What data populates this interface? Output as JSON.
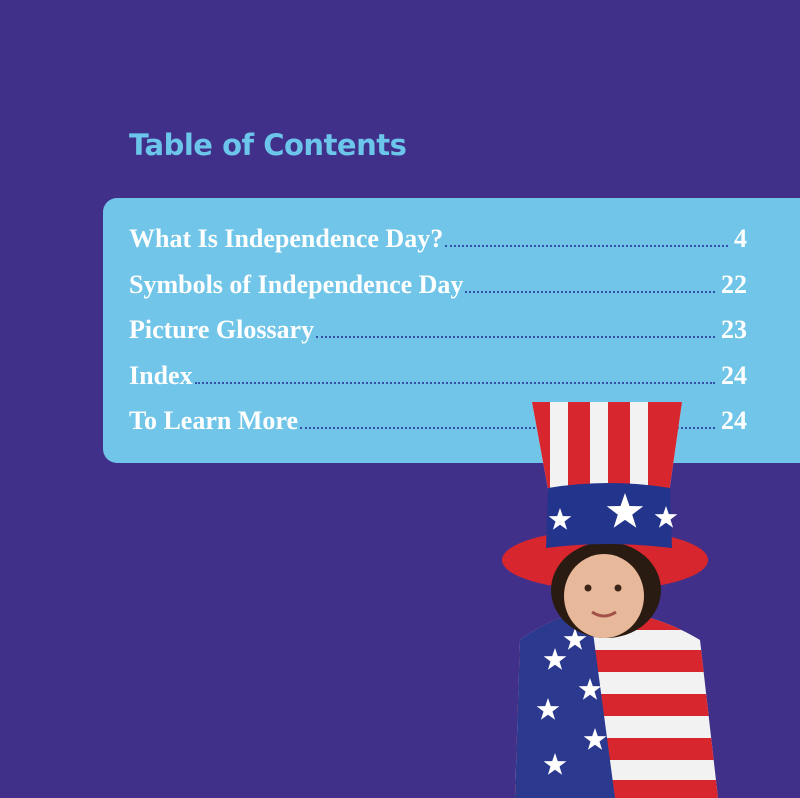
{
  "header": {
    "title": "Table of Contents"
  },
  "contents": [
    {
      "title": "What Is Independence Day?",
      "page": "4"
    },
    {
      "title": "Symbols of Independence Day",
      "page": "22"
    },
    {
      "title": "Picture Glossary",
      "page": "23"
    },
    {
      "title": "Index",
      "page": "24"
    },
    {
      "title": "To Learn More",
      "page": "24"
    }
  ]
}
